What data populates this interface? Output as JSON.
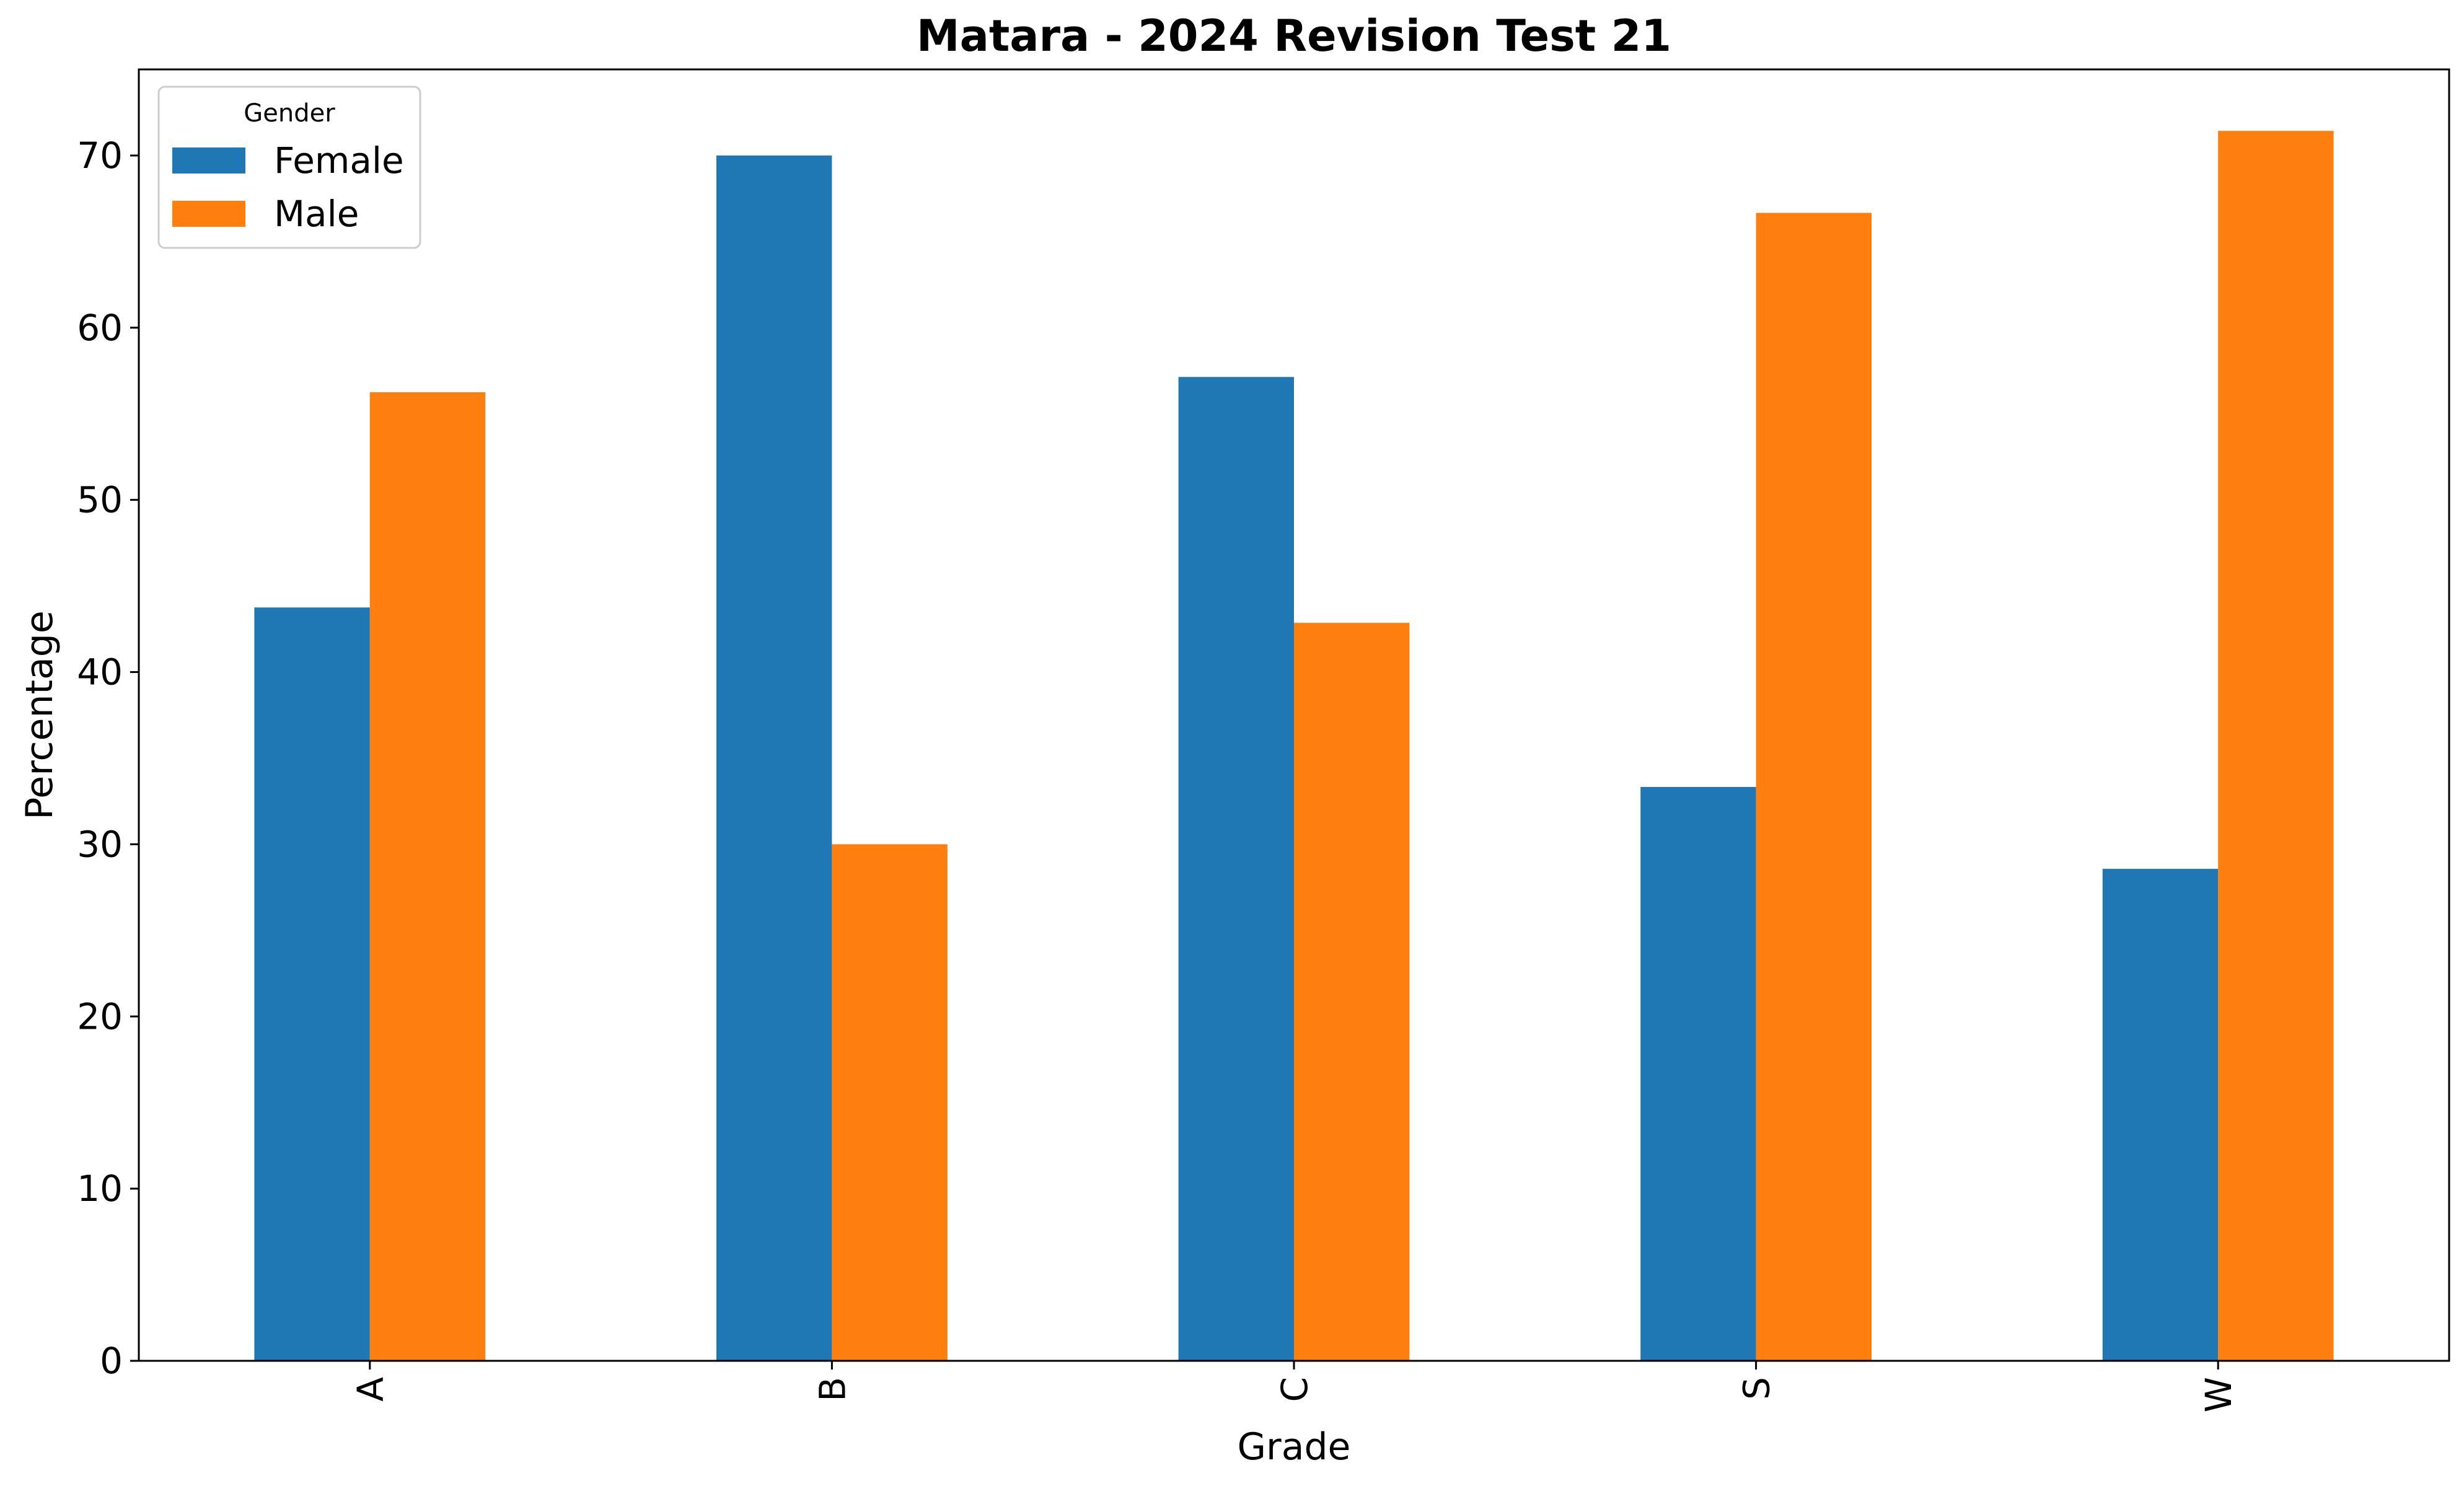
{
  "chart_data": {
    "type": "bar",
    "title": "Matara - 2024 Revision Test 21",
    "xlabel": "Grade",
    "ylabel": "Percentage",
    "categories": [
      "A",
      "B",
      "C",
      "S",
      "W"
    ],
    "series": [
      {
        "name": "Female",
        "color": "#1f77b4",
        "values": [
          43.75,
          70.0,
          57.14,
          33.33,
          28.57
        ]
      },
      {
        "name": "Male",
        "color": "#ff7f0e",
        "values": [
          56.25,
          30.0,
          42.86,
          66.67,
          71.43
        ]
      }
    ],
    "ylim": [
      0,
      75
    ],
    "yticks": [
      0,
      10,
      20,
      30,
      40,
      50,
      60,
      70
    ],
    "grid": false,
    "legend": {
      "title": "Gender",
      "position": "top-left"
    }
  }
}
